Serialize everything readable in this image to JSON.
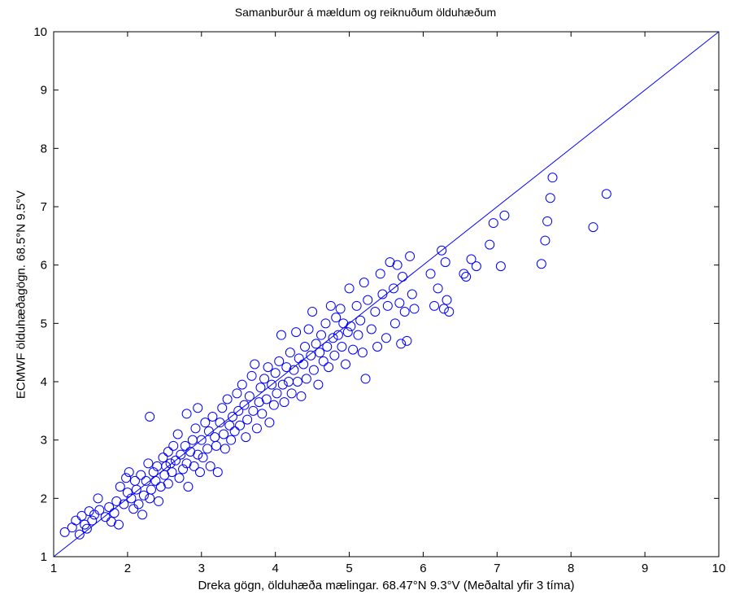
{
  "chart_data": {
    "type": "scatter",
    "title": "Samanburður á mældum og reiknuðum ölduhæðum",
    "xlabel": "Dreka gögn, ölduhæða mælingar. 68.47°N 9.3°V (Meðaltal yfir 3 tíma)",
    "ylabel": "ECMWF ölduhæðagögn. 68.5°N 9.5°V",
    "xlim": [
      1,
      10
    ],
    "ylim": [
      1,
      10
    ],
    "xticks": [
      "1",
      "2",
      "3",
      "4",
      "5",
      "6",
      "7",
      "8",
      "9",
      "10"
    ],
    "yticks": [
      "1",
      "2",
      "3",
      "4",
      "5",
      "6",
      "7",
      "8",
      "9",
      "10"
    ],
    "grid": false,
    "marker_color": "#0000ff",
    "reference_line": {
      "x": [
        1,
        10
      ],
      "y": [
        1,
        10
      ]
    },
    "series": [
      {
        "marker": "open-circle",
        "points": [
          [
            1.15,
            1.42
          ],
          [
            1.25,
            1.5
          ],
          [
            1.3,
            1.62
          ],
          [
            1.35,
            1.38
          ],
          [
            1.38,
            1.7
          ],
          [
            1.42,
            1.55
          ],
          [
            1.45,
            1.48
          ],
          [
            1.48,
            1.78
          ],
          [
            1.52,
            1.62
          ],
          [
            1.55,
            1.72
          ],
          [
            1.6,
            2.0
          ],
          [
            1.62,
            1.8
          ],
          [
            1.7,
            1.68
          ],
          [
            1.75,
            1.85
          ],
          [
            1.78,
            1.6
          ],
          [
            1.82,
            1.75
          ],
          [
            1.85,
            1.95
          ],
          [
            1.88,
            1.55
          ],
          [
            1.9,
            2.2
          ],
          [
            1.95,
            1.9
          ],
          [
            1.98,
            2.35
          ],
          [
            2.0,
            2.1
          ],
          [
            2.02,
            2.45
          ],
          [
            2.05,
            2.0
          ],
          [
            2.08,
            1.82
          ],
          [
            2.1,
            2.3
          ],
          [
            2.12,
            2.15
          ],
          [
            2.15,
            1.9
          ],
          [
            2.18,
            2.4
          ],
          [
            2.2,
            1.72
          ],
          [
            2.22,
            2.05
          ],
          [
            2.25,
            2.3
          ],
          [
            2.28,
            2.6
          ],
          [
            2.3,
            3.4
          ],
          [
            2.3,
            2.0
          ],
          [
            2.32,
            2.15
          ],
          [
            2.35,
            2.45
          ],
          [
            2.38,
            2.3
          ],
          [
            2.4,
            2.55
          ],
          [
            2.42,
            1.95
          ],
          [
            2.45,
            2.2
          ],
          [
            2.48,
            2.7
          ],
          [
            2.5,
            2.4
          ],
          [
            2.52,
            2.55
          ],
          [
            2.55,
            2.8
          ],
          [
            2.55,
            2.25
          ],
          [
            2.58,
            2.6
          ],
          [
            2.6,
            2.45
          ],
          [
            2.62,
            2.9
          ],
          [
            2.65,
            2.65
          ],
          [
            2.68,
            3.1
          ],
          [
            2.7,
            2.35
          ],
          [
            2.72,
            2.75
          ],
          [
            2.75,
            2.5
          ],
          [
            2.78,
            2.9
          ],
          [
            2.8,
            2.6
          ],
          [
            2.8,
            3.45
          ],
          [
            2.82,
            2.2
          ],
          [
            2.85,
            2.8
          ],
          [
            2.88,
            3.0
          ],
          [
            2.9,
            2.55
          ],
          [
            2.92,
            3.2
          ],
          [
            2.95,
            3.55
          ],
          [
            2.95,
            2.75
          ],
          [
            2.98,
            2.45
          ],
          [
            3.0,
            3.0
          ],
          [
            3.02,
            2.7
          ],
          [
            3.05,
            3.3
          ],
          [
            3.08,
            2.85
          ],
          [
            3.1,
            3.15
          ],
          [
            3.12,
            2.55
          ],
          [
            3.15,
            3.4
          ],
          [
            3.18,
            3.05
          ],
          [
            3.2,
            2.9
          ],
          [
            3.22,
            2.45
          ],
          [
            3.25,
            3.3
          ],
          [
            3.28,
            3.55
          ],
          [
            3.3,
            3.1
          ],
          [
            3.32,
            2.85
          ],
          [
            3.35,
            3.7
          ],
          [
            3.38,
            3.25
          ],
          [
            3.4,
            3.0
          ],
          [
            3.42,
            3.4
          ],
          [
            3.45,
            3.15
          ],
          [
            3.48,
            3.8
          ],
          [
            3.5,
            3.5
          ],
          [
            3.52,
            3.25
          ],
          [
            3.55,
            3.95
          ],
          [
            3.58,
            3.6
          ],
          [
            3.6,
            3.05
          ],
          [
            3.62,
            3.35
          ],
          [
            3.65,
            3.75
          ],
          [
            3.68,
            4.1
          ],
          [
            3.7,
            3.5
          ],
          [
            3.72,
            4.3
          ],
          [
            3.75,
            3.2
          ],
          [
            3.78,
            3.65
          ],
          [
            3.8,
            3.9
          ],
          [
            3.82,
            3.45
          ],
          [
            3.85,
            4.05
          ],
          [
            3.88,
            3.7
          ],
          [
            3.9,
            4.25
          ],
          [
            3.92,
            3.3
          ],
          [
            3.95,
            3.95
          ],
          [
            3.98,
            3.6
          ],
          [
            4.0,
            4.15
          ],
          [
            4.02,
            3.8
          ],
          [
            4.05,
            4.35
          ],
          [
            4.08,
            4.8
          ],
          [
            4.1,
            3.95
          ],
          [
            4.12,
            3.65
          ],
          [
            4.15,
            4.25
          ],
          [
            4.18,
            4.0
          ],
          [
            4.2,
            4.5
          ],
          [
            4.22,
            3.8
          ],
          [
            4.25,
            4.2
          ],
          [
            4.28,
            4.85
          ],
          [
            4.3,
            4.0
          ],
          [
            4.32,
            4.4
          ],
          [
            4.35,
            3.75
          ],
          [
            4.38,
            4.3
          ],
          [
            4.4,
            4.6
          ],
          [
            4.42,
            4.05
          ],
          [
            4.45,
            4.9
          ],
          [
            4.48,
            4.45
          ],
          [
            4.5,
            5.2
          ],
          [
            4.52,
            4.2
          ],
          [
            4.55,
            4.65
          ],
          [
            4.58,
            3.95
          ],
          [
            4.6,
            4.5
          ],
          [
            4.62,
            4.8
          ],
          [
            4.65,
            4.35
          ],
          [
            4.68,
            5.0
          ],
          [
            4.7,
            4.6
          ],
          [
            4.72,
            4.25
          ],
          [
            4.75,
            5.3
          ],
          [
            4.78,
            4.75
          ],
          [
            4.8,
            4.45
          ],
          [
            4.82,
            5.1
          ],
          [
            4.85,
            4.8
          ],
          [
            4.88,
            5.25
          ],
          [
            4.9,
            4.6
          ],
          [
            4.92,
            5.0
          ],
          [
            4.95,
            4.3
          ],
          [
            4.98,
            4.85
          ],
          [
            5.0,
            5.6
          ],
          [
            5.02,
            4.95
          ],
          [
            5.05,
            4.55
          ],
          [
            5.1,
            5.3
          ],
          [
            5.12,
            4.8
          ],
          [
            5.15,
            5.05
          ],
          [
            5.18,
            4.5
          ],
          [
            5.2,
            5.7
          ],
          [
            5.22,
            4.05
          ],
          [
            5.25,
            5.4
          ],
          [
            5.3,
            4.9
          ],
          [
            5.35,
            5.2
          ],
          [
            5.38,
            4.6
          ],
          [
            5.42,
            5.85
          ],
          [
            5.45,
            5.5
          ],
          [
            5.5,
            4.75
          ],
          [
            5.52,
            5.3
          ],
          [
            5.55,
            6.05
          ],
          [
            5.6,
            5.6
          ],
          [
            5.62,
            5.0
          ],
          [
            5.65,
            6.0
          ],
          [
            5.68,
            5.35
          ],
          [
            5.7,
            4.65
          ],
          [
            5.72,
            5.8
          ],
          [
            5.75,
            5.2
          ],
          [
            5.78,
            4.7
          ],
          [
            5.82,
            6.15
          ],
          [
            5.85,
            5.5
          ],
          [
            5.88,
            5.25
          ],
          [
            6.1,
            5.85
          ],
          [
            6.15,
            5.3
          ],
          [
            6.2,
            5.6
          ],
          [
            6.25,
            6.25
          ],
          [
            6.28,
            5.25
          ],
          [
            6.3,
            6.05
          ],
          [
            6.32,
            5.4
          ],
          [
            6.35,
            5.2
          ],
          [
            6.55,
            5.85
          ],
          [
            6.58,
            5.8
          ],
          [
            6.65,
            6.1
          ],
          [
            6.72,
            5.98
          ],
          [
            6.9,
            6.35
          ],
          [
            6.95,
            6.72
          ],
          [
            7.05,
            5.98
          ],
          [
            7.1,
            6.85
          ],
          [
            7.6,
            6.02
          ],
          [
            7.65,
            6.42
          ],
          [
            7.68,
            6.75
          ],
          [
            7.72,
            7.15
          ],
          [
            7.75,
            7.5
          ],
          [
            8.3,
            6.65
          ],
          [
            8.48,
            7.22
          ]
        ]
      }
    ]
  }
}
